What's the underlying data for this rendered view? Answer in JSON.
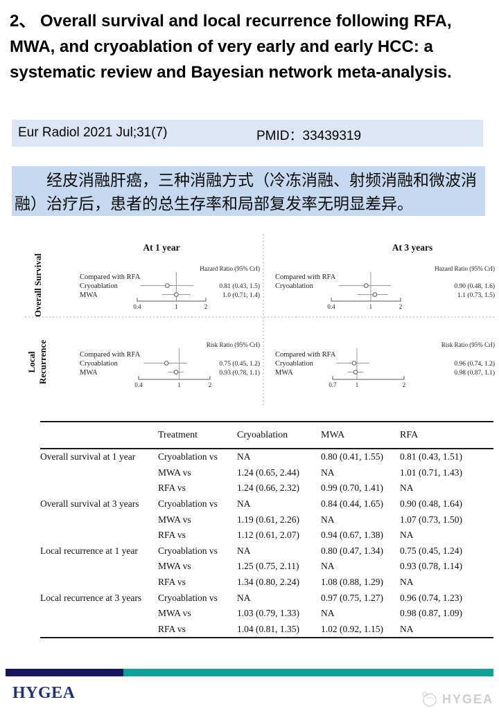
{
  "title": "2、 Overall survival and local recurrence following RFA, MWA, and cryoablation of very early and early HCC: a systematic review and Bayesian network meta-analysis.",
  "journal": {
    "citation": "Eur Radiol 2021 Jul;31(7)",
    "pmid": "PMID：33439319"
  },
  "summary": {
    "text": "经皮消融肝癌，三种消融方式（冷冻消融、射频消融和微波消融）治疗后，患者的总生存率和局部复发率无明显差异。"
  },
  "chart_data": {
    "type": "forest",
    "scale": "log",
    "panels": [
      {
        "title": "At 1 year",
        "side_label": [
          "Overall Survival"
        ],
        "ratio_label": "Hazard Ratio (95% CrI)",
        "compare_label": "Compared with RFA",
        "ticks": [
          0.4,
          1,
          2
        ],
        "rows": [
          {
            "label": "Cryoablation",
            "est": 0.81,
            "lo": 0.43,
            "hi": 1.5,
            "text": "0.81 (0.43, 1.5)"
          },
          {
            "label": "MWA",
            "est": 1.0,
            "lo": 0.71,
            "hi": 1.4,
            "text": "1.0 (0.71, 1.4)"
          }
        ]
      },
      {
        "title": "At 3 years",
        "side_label": [],
        "ratio_label": "Hazard Ratio (95% CrI)",
        "compare_label": "Compared with RFA",
        "ticks": [
          0.4,
          1,
          2
        ],
        "rows": [
          {
            "label": "Cryoablation",
            "est": 0.9,
            "lo": 0.48,
            "hi": 1.6,
            "text": "0.90 (0.48, 1.6)"
          },
          {
            "label": "",
            "est": 1.1,
            "lo": 0.73,
            "hi": 1.5,
            "text": "1.1 (0.73, 1.5)"
          }
        ]
      },
      {
        "title": "",
        "side_label": [
          "Local",
          "Recurrence"
        ],
        "ratio_label": "Risk Ratio (95% CrI)",
        "compare_label": "Compared with RFA",
        "ticks": [
          0.4,
          1,
          2
        ],
        "rows": [
          {
            "label": "Cryoablation",
            "est": 0.75,
            "lo": 0.45,
            "hi": 1.2,
            "text": "0.75 (0.45, 1.2)"
          },
          {
            "label": "MWA",
            "est": 0.93,
            "lo": 0.78,
            "hi": 1.1,
            "text": "0.93 (0.78, 1.1)"
          }
        ]
      },
      {
        "title": "",
        "side_label": [],
        "ratio_label": "Risk Ratio (95% CrI)",
        "compare_label": "Compared with RFA",
        "ticks": [
          0.7,
          1,
          2
        ],
        "rows": [
          {
            "label": "Cryoablation",
            "est": 0.96,
            "lo": 0.74,
            "hi": 1.2,
            "text": "0.96 (0.74, 1.2)"
          },
          {
            "label": "MWA",
            "est": 0.98,
            "lo": 0.87,
            "hi": 1.1,
            "text": "0.98 (0.87, 1.1)"
          }
        ]
      }
    ]
  },
  "table": {
    "headers": [
      "",
      "Treatment",
      "Cryoablation",
      "MWA",
      "RFA"
    ],
    "rows": [
      [
        "Overall survival at 1 year",
        "Cryoablation vs",
        "NA",
        "0.80 (0.41, 1.55)",
        "0.81 (0.43, 1.51)"
      ],
      [
        "",
        "MWA vs",
        "1.24 (0.65, 2.44)",
        "NA",
        "1.01 (0.71, 1.43)"
      ],
      [
        "",
        "RFA vs",
        "1.24 (0.66, 2.32)",
        "0.99 (0.70, 1.41)",
        "NA"
      ],
      [
        "Overall survival at 3 years",
        "Cryoablation vs",
        "NA",
        "0.84 (0.44, 1.65)",
        "0.90 (0.48, 1.64)"
      ],
      [
        "",
        "MWA vs",
        "1.19 (0.61, 2.26)",
        "NA",
        "1.07 (0.73, 1.50)"
      ],
      [
        "",
        "RFA vs",
        "1.12 (0.61, 2.07)",
        "0.94 (0.67, 1.38)",
        "NA"
      ],
      [
        "Local recurrence at 1 year",
        "Cryoablation vs",
        "NA",
        "0.80 (0.47, 1.34)",
        "0.75 (0.45, 1.24)"
      ],
      [
        "",
        "MWA vs",
        "1.25 (0.75, 2.11)",
        "NA",
        "0.93 (0.78, 1.14)"
      ],
      [
        "",
        "RFA vs",
        "1.34 (0.80, 2.24)",
        "1.08 (0.88, 1.29)",
        "NA"
      ],
      [
        "Local recurrence at 3 years",
        "Cryoablation vs",
        "NA",
        "0.97 (0.75, 1.27)",
        "0.96 (0.74, 1.23)"
      ],
      [
        "",
        "MWA vs",
        "1.03 (0.79, 1.33)",
        "NA",
        "0.98 (0.87, 1.09)"
      ],
      [
        "",
        "RFA vs",
        "1.04 (0.81, 1.35)",
        "1.02 (0.92, 1.15)",
        "NA"
      ]
    ]
  },
  "footer": {
    "brand": "HYGEA",
    "watermark": "HYGEA"
  },
  "colors": {
    "journal_bar_bg": "#dbe5f3",
    "summary_bar_bg": "#c5d9f0",
    "navy_bar": "#16155d",
    "teal_bar": "#0aa096",
    "brand_text": "#22307a",
    "watermark_grey": "#c9c9c9"
  }
}
